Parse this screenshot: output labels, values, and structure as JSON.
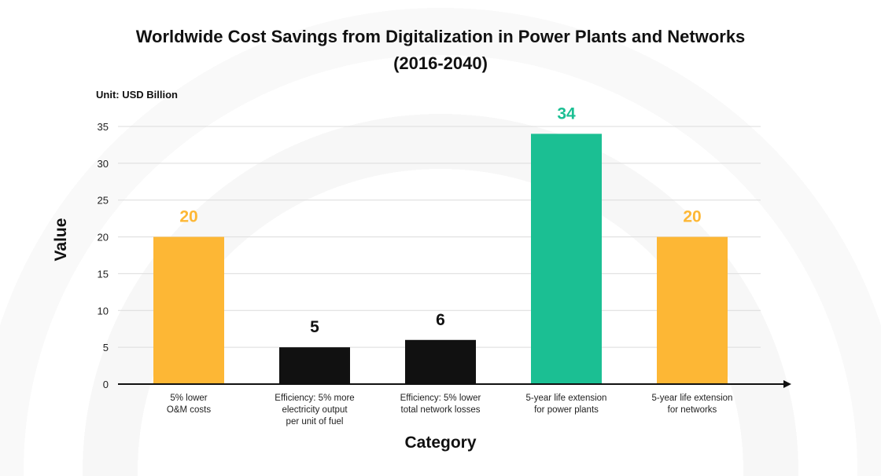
{
  "chart_data": {
    "type": "bar",
    "title": "Worldwide Cost Savings from Digitalization in Power Plants and Networks (2016-2040)",
    "title_lines": [
      "Worldwide Cost Savings from Digitalization in Power Plants and Networks",
      "(2016-2040)"
    ],
    "unit": "Unit: USD Billion",
    "xlabel": "Category",
    "ylabel": "Value",
    "ylim": [
      0,
      35
    ],
    "yticks": [
      0,
      5,
      10,
      15,
      20,
      25,
      30,
      35
    ],
    "grid": true,
    "categories": [
      [
        "5% lower",
        "O&M costs"
      ],
      [
        "Efficiency: 5% more",
        "electricity output",
        "per unit of fuel"
      ],
      [
        "Efficiency: 5% lower",
        "total network losses"
      ],
      [
        "5-year life extension",
        "for power plants"
      ],
      [
        "5-year life extension",
        "for networks"
      ]
    ],
    "values": [
      20,
      5,
      6,
      34,
      20
    ],
    "colors": [
      "#FDB735",
      "#111111",
      "#111111",
      "#1BBF93",
      "#FDB735"
    ]
  }
}
